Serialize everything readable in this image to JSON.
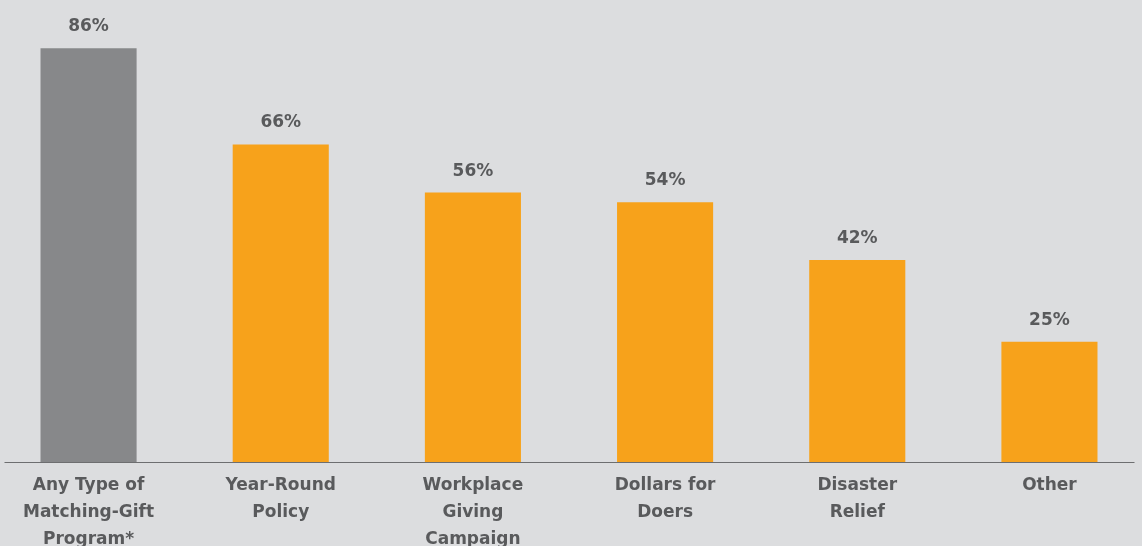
{
  "chart_data": {
    "type": "bar",
    "categories": [
      "Any Type of Matching-Gift Program*",
      "Year-Round Policy",
      "Workplace Giving Campaign",
      "Dollars for Doers",
      "Disaster Relief",
      "Other"
    ],
    "values": [
      86,
      66,
      56,
      54,
      42,
      25
    ],
    "value_labels": [
      "86%",
      "66%",
      "56%",
      "54%",
      "42%",
      "25%"
    ],
    "colors": [
      "#87888a",
      "#f7a21b",
      "#f7a21b",
      "#f7a21b",
      "#f7a21b",
      "#f7a21b"
    ],
    "ylim": [
      0,
      96
    ],
    "legend": false
  }
}
